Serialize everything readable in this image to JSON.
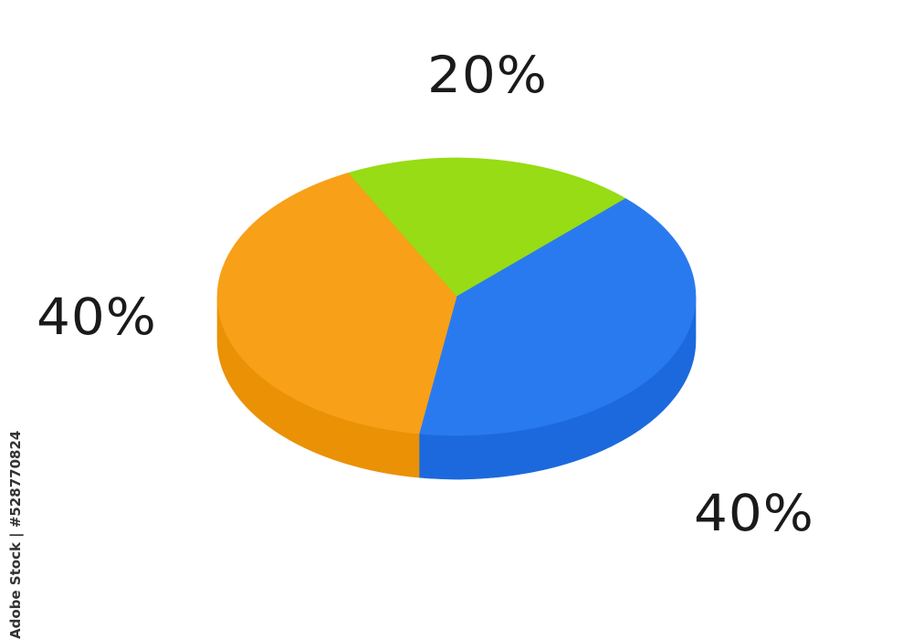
{
  "chart_data": {
    "type": "pie",
    "style": "3d",
    "values": [
      20,
      40,
      40
    ],
    "labels": [
      "20%",
      "40%",
      "40%"
    ],
    "colors": {
      "top": [
        "#97dc14",
        "#2a7aef",
        "#f7a018"
      ],
      "side": [
        "#7fbf0c",
        "#1c69dd",
        "#ea9106"
      ]
    },
    "title": "",
    "legend": "none"
  },
  "watermark": {
    "text": "Adobe Stock",
    "id": "Adobe Stock | #528770824"
  }
}
